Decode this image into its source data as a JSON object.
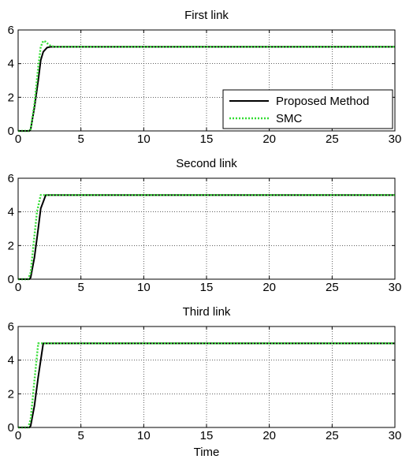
{
  "chart_data": [
    {
      "type": "line",
      "title": "First link",
      "xlim": [
        0,
        30
      ],
      "ylim": [
        0,
        6
      ],
      "xticks": [
        0,
        5,
        10,
        15,
        20,
        25,
        30
      ],
      "yticks": [
        0,
        2,
        4,
        6
      ],
      "grid": true,
      "legend": {
        "location": "bottom-right",
        "entries": [
          "Proposed Method",
          "SMC"
        ]
      },
      "series": [
        {
          "name": "Proposed Method",
          "color": "#000000",
          "style": "solid",
          "x": [
            0,
            0.9,
            1.0,
            1.3,
            1.6,
            1.8,
            2.0,
            2.3,
            2.6,
            30
          ],
          "y": [
            0,
            0,
            0.1,
            1.4,
            3.0,
            4.2,
            4.7,
            4.95,
            5.0,
            5.0
          ]
        },
        {
          "name": "SMC",
          "color": "#33dd33",
          "style": "dotted",
          "x": [
            0,
            0.9,
            1.0,
            1.3,
            1.6,
            1.8,
            2.0,
            2.2,
            2.4,
            2.6,
            2.9,
            30
          ],
          "y": [
            0,
            0,
            0.1,
            1.6,
            3.8,
            5.0,
            5.35,
            5.3,
            5.15,
            5.05,
            5.0,
            5.0
          ]
        }
      ]
    },
    {
      "type": "line",
      "title": "Second link",
      "xlim": [
        0,
        30
      ],
      "ylim": [
        0,
        6
      ],
      "xticks": [
        0,
        5,
        10,
        15,
        20,
        25,
        30
      ],
      "yticks": [
        0,
        2,
        4,
        6
      ],
      "grid": true,
      "series": [
        {
          "name": "Proposed Method",
          "color": "#000000",
          "style": "solid",
          "x": [
            0,
            0.9,
            1.0,
            1.3,
            1.6,
            1.8,
            2.0,
            2.2,
            30
          ],
          "y": [
            0,
            0,
            0.1,
            1.3,
            3.0,
            4.2,
            4.6,
            5.0,
            5.0
          ]
        },
        {
          "name": "SMC",
          "color": "#33dd33",
          "style": "dotted",
          "x": [
            0,
            0.8,
            1.0,
            1.3,
            1.5,
            1.8,
            30
          ],
          "y": [
            0,
            0,
            0.4,
            2.6,
            4.0,
            5.0,
            5.0
          ]
        }
      ]
    },
    {
      "type": "line",
      "title": "Third link",
      "xlim": [
        0,
        30
      ],
      "ylim": [
        0,
        6
      ],
      "xticks": [
        0,
        5,
        10,
        15,
        20,
        25,
        30
      ],
      "yticks": [
        0,
        2,
        4,
        6
      ],
      "grid": true,
      "xlabel": "Time",
      "series": [
        {
          "name": "Proposed Method",
          "color": "#000000",
          "style": "solid",
          "x": [
            0,
            0.9,
            1.0,
            1.3,
            1.6,
            1.8,
            2.0,
            30
          ],
          "y": [
            0,
            0,
            0.1,
            1.3,
            3.0,
            4.0,
            5.0,
            5.0
          ]
        },
        {
          "name": "SMC",
          "color": "#33dd33",
          "style": "dotted",
          "x": [
            0,
            0.8,
            1.0,
            1.3,
            1.6,
            30
          ],
          "y": [
            0,
            0,
            0.5,
            2.8,
            5.0,
            5.0
          ]
        }
      ]
    }
  ]
}
